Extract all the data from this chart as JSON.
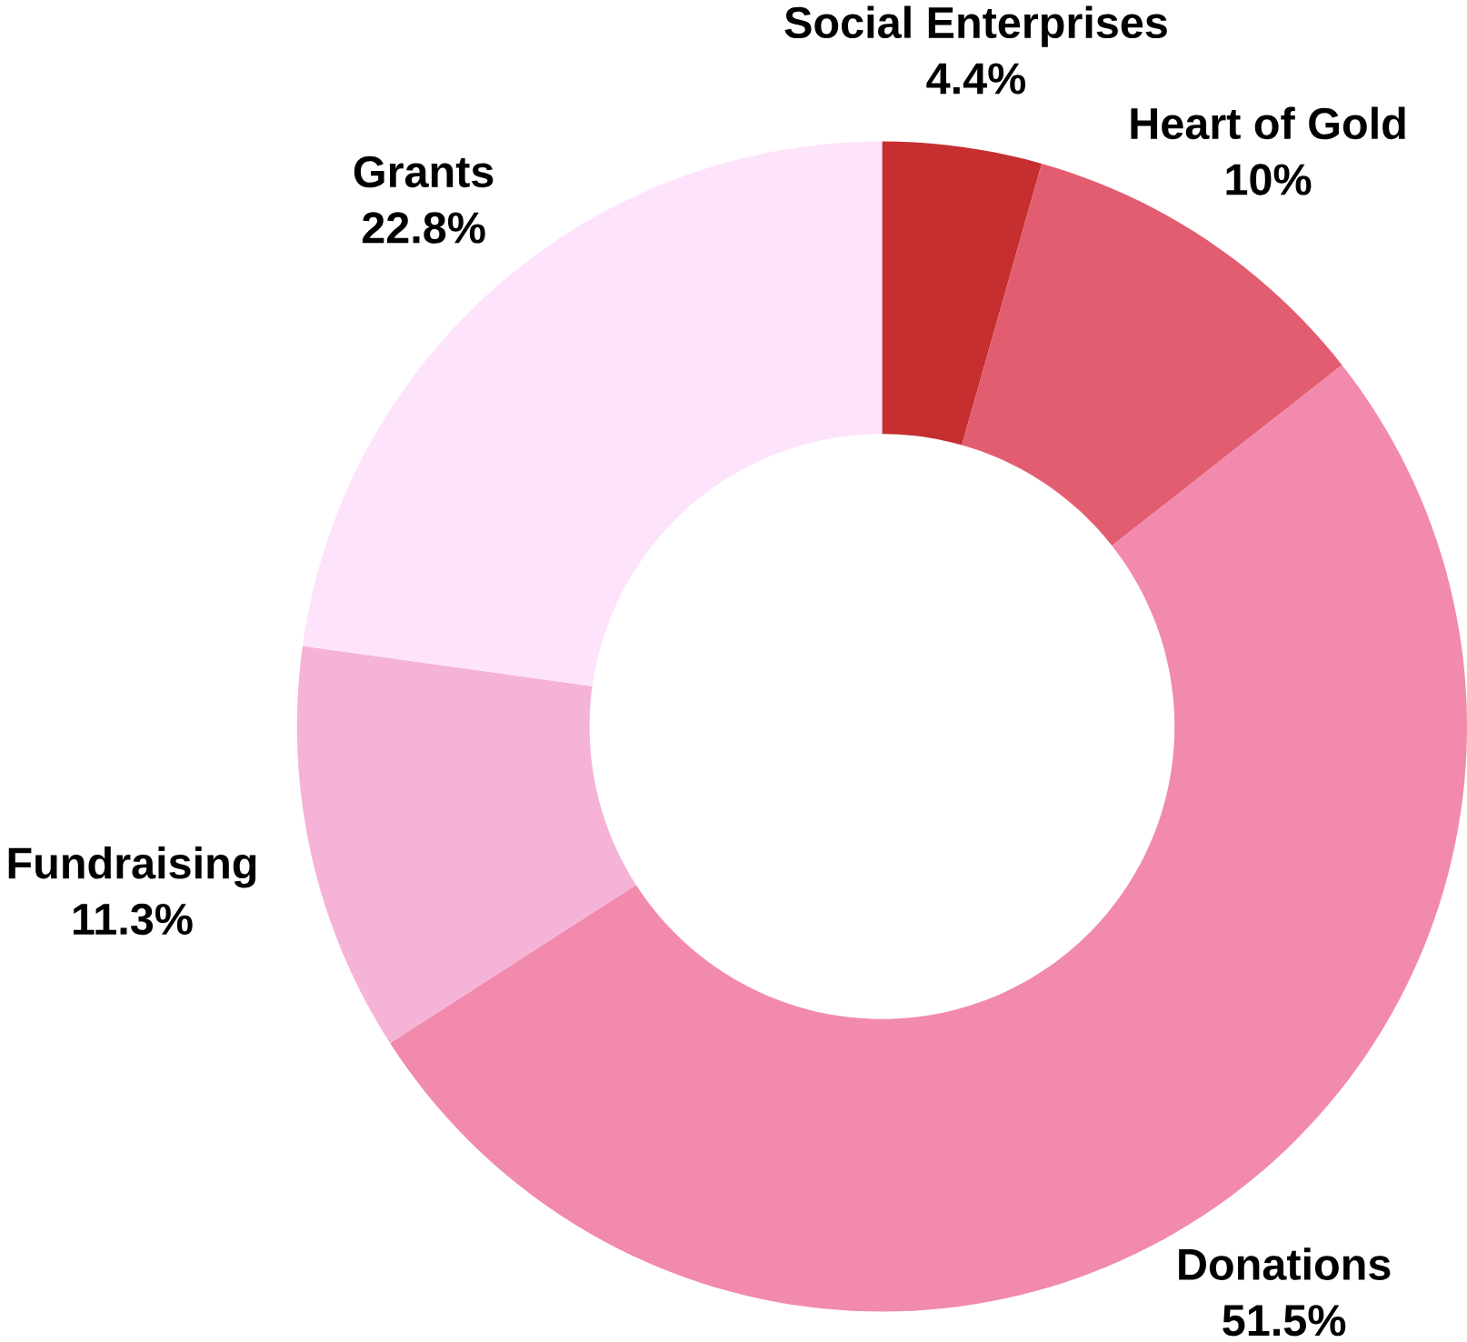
{
  "chart_data": {
    "type": "donut",
    "categories": [
      "Social Enterprises",
      "Heart of Gold",
      "Donations",
      "Fundraising",
      "Grants"
    ],
    "values": [
      4.4,
      10,
      51.5,
      11.3,
      22.8
    ],
    "value_labels": [
      "4.4%",
      "10%",
      "51.5%",
      "11.3%",
      "22.8%"
    ],
    "colors": [
      "#c62f2f",
      "#e35d70",
      "#f18aad",
      "#f6b3d8",
      "#fde3fb"
    ]
  }
}
